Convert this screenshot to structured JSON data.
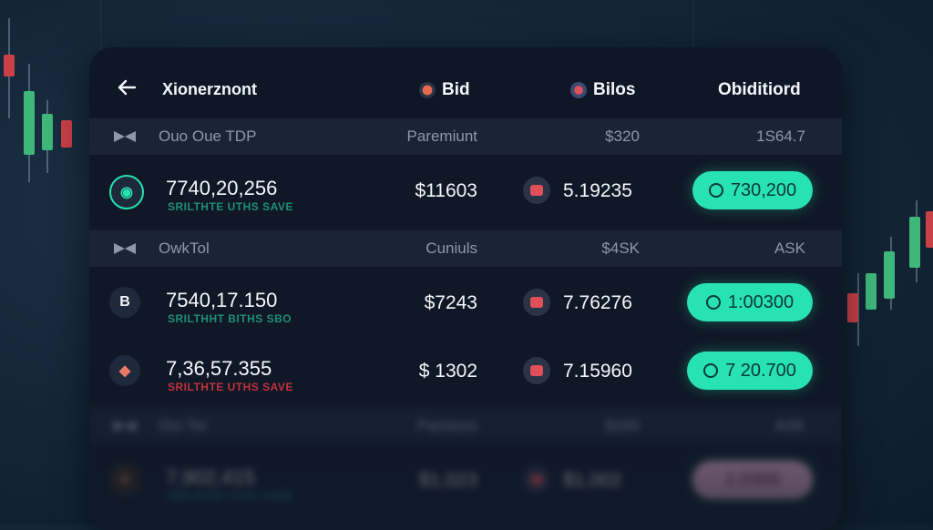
{
  "header": {
    "title": "Xionerznont",
    "col_bid": "Bid",
    "col_bilos": "Bilos",
    "col_last": "Obiditiord"
  },
  "sections": [
    {
      "label": "Ouo Oue TDP",
      "col2": "Paremiunt",
      "col3": "$320",
      "col4": "1S64.7"
    },
    {
      "label": "OwkTol",
      "col2": "Cuniuls",
      "col3": "$4SK",
      "col4": "ASK"
    },
    {
      "label": "Oui Tol",
      "col2": "Pamiuns",
      "col3": "$160",
      "col4": "ASK"
    }
  ],
  "rows": [
    {
      "avatar": "◉",
      "number": "7740,20,256",
      "sub": "SRILTHTE UTHS SAVE",
      "sub_color": "#1f8e78",
      "price": "$11603",
      "bid": "5.19235",
      "action": "730,200"
    },
    {
      "avatar": "B",
      "number": "7540,17.150",
      "sub": "SRILTHHT BITHS SBO",
      "sub_color": "#1f8e78",
      "price": "$7243",
      "bid": "7.76276",
      "action": "1:00300"
    },
    {
      "avatar": "◆",
      "number": "7,36,57.355",
      "sub": "SRILTHTE UTHS SAVE",
      "sub_color": "#c0323c",
      "price": "$ 1302",
      "bid": "7.15960",
      "action": "7 20.700"
    },
    {
      "avatar": "●",
      "number": "7,902,415",
      "sub": "SRILTHTE UTHS SAVE",
      "sub_color": "#1f8e78",
      "price": "$1,023",
      "bid": "$1,002",
      "action": "1:0300"
    }
  ],
  "colors": {
    "accent": "#27e2b1",
    "bid_icon": "#e0505a",
    "panel": "#111a2a"
  },
  "icons": {
    "back": "arrow-left-icon",
    "bid": "bid-badge-icon",
    "bilos": "bilos-badge-icon",
    "section": "bowtie-icon"
  }
}
